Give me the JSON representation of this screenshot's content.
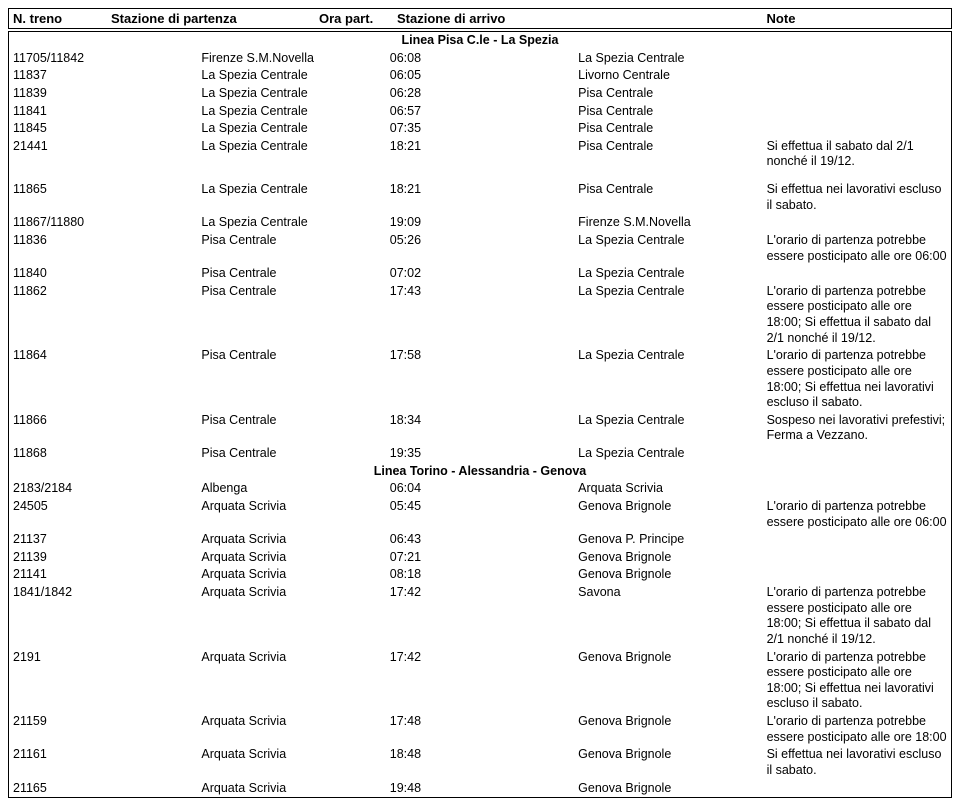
{
  "headers": {
    "treno": "N. treno",
    "partenza": "Stazione di partenza",
    "ora": "Ora part.",
    "arrivo": "Stazione di arrivo",
    "note": "Note"
  },
  "sections": [
    {
      "title": "Linea Pisa C.le - La Spezia",
      "rows": [
        {
          "treno": "11705/11842",
          "part": "Firenze S.M.Novella",
          "ora": "06:08",
          "arr": "La Spezia Centrale",
          "note": ""
        },
        {
          "treno": "11837",
          "part": "La Spezia Centrale",
          "ora": "06:05",
          "arr": "Livorno Centrale",
          "note": ""
        },
        {
          "treno": "11839",
          "part": "La Spezia Centrale",
          "ora": "06:28",
          "arr": "Pisa Centrale",
          "note": ""
        },
        {
          "treno": "11841",
          "part": "La Spezia Centrale",
          "ora": "06:57",
          "arr": "Pisa Centrale",
          "note": ""
        },
        {
          "treno": "11845",
          "part": "La Spezia Centrale",
          "ora": "07:35",
          "arr": "Pisa Centrale",
          "note": ""
        },
        {
          "treno": "21441",
          "part": "La Spezia Centrale",
          "ora": "18:21",
          "arr": "Pisa Centrale",
          "note": "Si effettua il sabato dal 2/1 nonché il 19/12.",
          "gapAfter": true
        },
        {
          "treno": "11865",
          "part": "La Spezia Centrale",
          "ora": "18:21",
          "arr": "Pisa Centrale",
          "note": "Si effettua nei lavorativi escluso il sabato."
        },
        {
          "treno": "11867/11880",
          "part": "La Spezia Centrale",
          "ora": "19:09",
          "arr": "Firenze S.M.Novella",
          "note": ""
        },
        {
          "treno": "11836",
          "part": "Pisa Centrale",
          "ora": "05:26",
          "arr": "La Spezia Centrale",
          "note": "L'orario di partenza potrebbe essere posticipato alle ore 06:00"
        },
        {
          "treno": "11840",
          "part": "Pisa Centrale",
          "ora": "07:02",
          "arr": "La Spezia Centrale",
          "note": ""
        },
        {
          "treno": "11862",
          "part": "Pisa Centrale",
          "ora": "17:43",
          "arr": "La Spezia Centrale",
          "note": "L'orario di partenza potrebbe essere posticipato alle ore 18:00; Si effettua il sabato dal 2/1 nonché il 19/12."
        },
        {
          "treno": "11864",
          "part": "Pisa Centrale",
          "ora": "17:58",
          "arr": "La Spezia Centrale",
          "note": "L'orario di partenza potrebbe essere posticipato alle ore 18:00; Si effettua nei lavorativi escluso il sabato."
        },
        {
          "treno": "11866",
          "part": "Pisa Centrale",
          "ora": "18:34",
          "arr": "La Spezia Centrale",
          "note": "Sospeso nei lavorativi prefestivi; Ferma a Vezzano."
        },
        {
          "treno": "11868",
          "part": "Pisa Centrale",
          "ora": "19:35",
          "arr": "La Spezia Centrale",
          "note": ""
        }
      ]
    },
    {
      "title": "Linea Torino - Alessandria - Genova",
      "rows": [
        {
          "treno": "2183/2184",
          "part": "Albenga",
          "ora": "06:04",
          "arr": "Arquata Scrivia",
          "note": ""
        },
        {
          "treno": "24505",
          "part": "Arquata Scrivia",
          "ora": "05:45",
          "arr": "Genova Brignole",
          "note": "L'orario di partenza potrebbe essere posticipato alle ore 06:00"
        },
        {
          "treno": "21137",
          "part": "Arquata Scrivia",
          "ora": "06:43",
          "arr": "Genova P. Principe",
          "note": ""
        },
        {
          "treno": "21139",
          "part": "Arquata Scrivia",
          "ora": "07:21",
          "arr": "Genova Brignole",
          "note": ""
        },
        {
          "treno": "21141",
          "part": "Arquata Scrivia",
          "ora": "08:18",
          "arr": "Genova Brignole",
          "note": ""
        },
        {
          "treno": "1841/1842",
          "part": "Arquata Scrivia",
          "ora": "17:42",
          "arr": "Savona",
          "note": "L'orario di partenza potrebbe essere posticipato alle ore 18:00; Si effettua il sabato dal 2/1 nonché il 19/12."
        },
        {
          "treno": "2191",
          "part": "Arquata Scrivia",
          "ora": "17:42",
          "arr": "Genova Brignole",
          "note": "L'orario di partenza potrebbe essere posticipato alle ore 18:00; Si effettua nei lavorativi escluso il sabato."
        },
        {
          "treno": "21159",
          "part": "Arquata Scrivia",
          "ora": "17:48",
          "arr": "Genova Brignole",
          "note": "L'orario di partenza potrebbe essere posticipato alle ore 18:00"
        },
        {
          "treno": "21161",
          "part": "Arquata Scrivia",
          "ora": "18:48",
          "arr": "Genova Brignole",
          "note": "Si effettua nei lavorativi escluso il sabato."
        },
        {
          "treno": "21165",
          "part": "Arquata Scrivia",
          "ora": "19:48",
          "arr": "Genova Brignole",
          "note": ""
        }
      ]
    }
  ]
}
